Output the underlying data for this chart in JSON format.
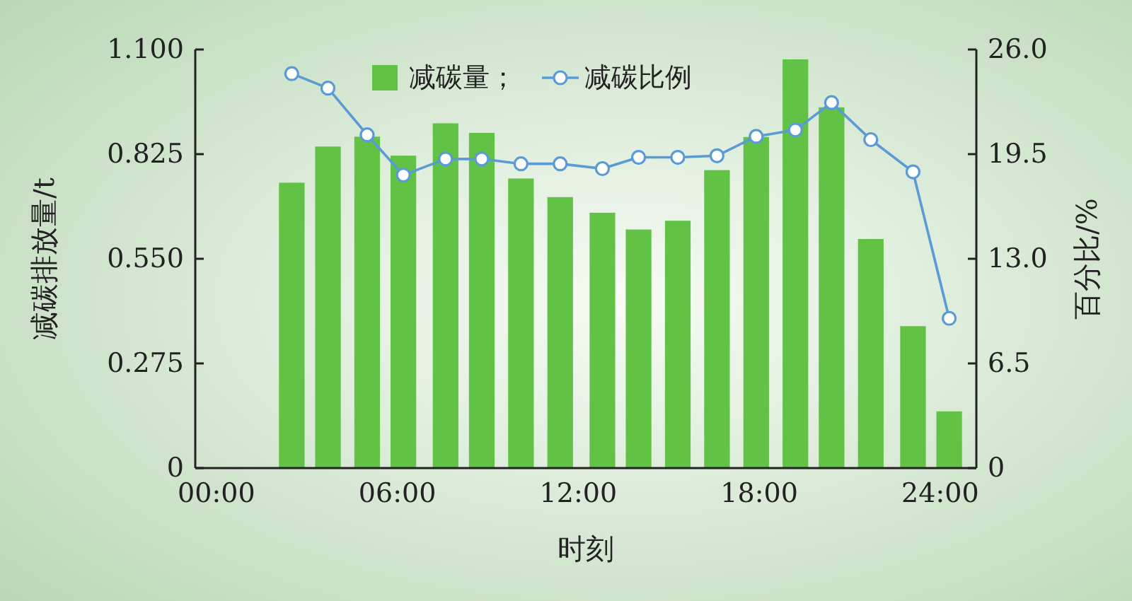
{
  "chart_data": {
    "type": "bar",
    "xlabel": "时刻",
    "ylabel": "减碳排放量/t",
    "y2label": "百分比/%",
    "x": [
      2.5,
      3.7,
      5.0,
      6.2,
      7.6,
      8.8,
      10.1,
      11.4,
      12.8,
      14.0,
      15.3,
      16.6,
      17.9,
      19.2,
      20.4,
      21.7,
      23.1,
      24.3
    ],
    "series": [
      {
        "name": "减碳量；",
        "color": "#62c246",
        "values": [
          0.75,
          0.845,
          0.871,
          0.821,
          0.906,
          0.881,
          0.761,
          0.712,
          0.671,
          0.627,
          0.65,
          0.783,
          0.87,
          1.074,
          0.948,
          0.602,
          0.373,
          0.149
        ]
      },
      {
        "name": "减碳比例",
        "type": "line",
        "axis": "y2",
        "color": "#5b9bd5",
        "marker": "circle",
        "values": [
          24.5,
          23.6,
          20.7,
          18.2,
          19.2,
          19.2,
          18.9,
          18.9,
          18.6,
          19.3,
          19.3,
          19.4,
          20.6,
          21.0,
          22.7,
          20.4,
          18.4,
          9.3
        ]
      }
    ],
    "xlim": [
      -0.7,
      25.2
    ],
    "xticks": [
      {
        "value": 0,
        "label": "00:00"
      },
      {
        "value": 6,
        "label": "06:00"
      },
      {
        "value": 12,
        "label": "12:00"
      },
      {
        "value": 18,
        "label": "18:00"
      },
      {
        "value": 24,
        "label": "24:00"
      }
    ],
    "ylim": [
      0,
      1.1
    ],
    "yticks": [
      0,
      {
        "value": 0.275,
        "label": "0.275"
      },
      {
        "value": 0.55,
        "label": "0.550"
      },
      {
        "value": 0.825,
        "label": "0.825"
      },
      {
        "value": 1.1,
        "label": "1.100"
      }
    ],
    "y2lim": [
      0,
      26
    ],
    "y2ticks": [
      0,
      {
        "value": 6.5,
        "label": "6.5"
      },
      {
        "value": 13,
        "label": "13.0"
      },
      {
        "value": 19.5,
        "label": "19.5"
      },
      {
        "value": 26,
        "label": "26.0"
      }
    ],
    "legend": "top"
  }
}
